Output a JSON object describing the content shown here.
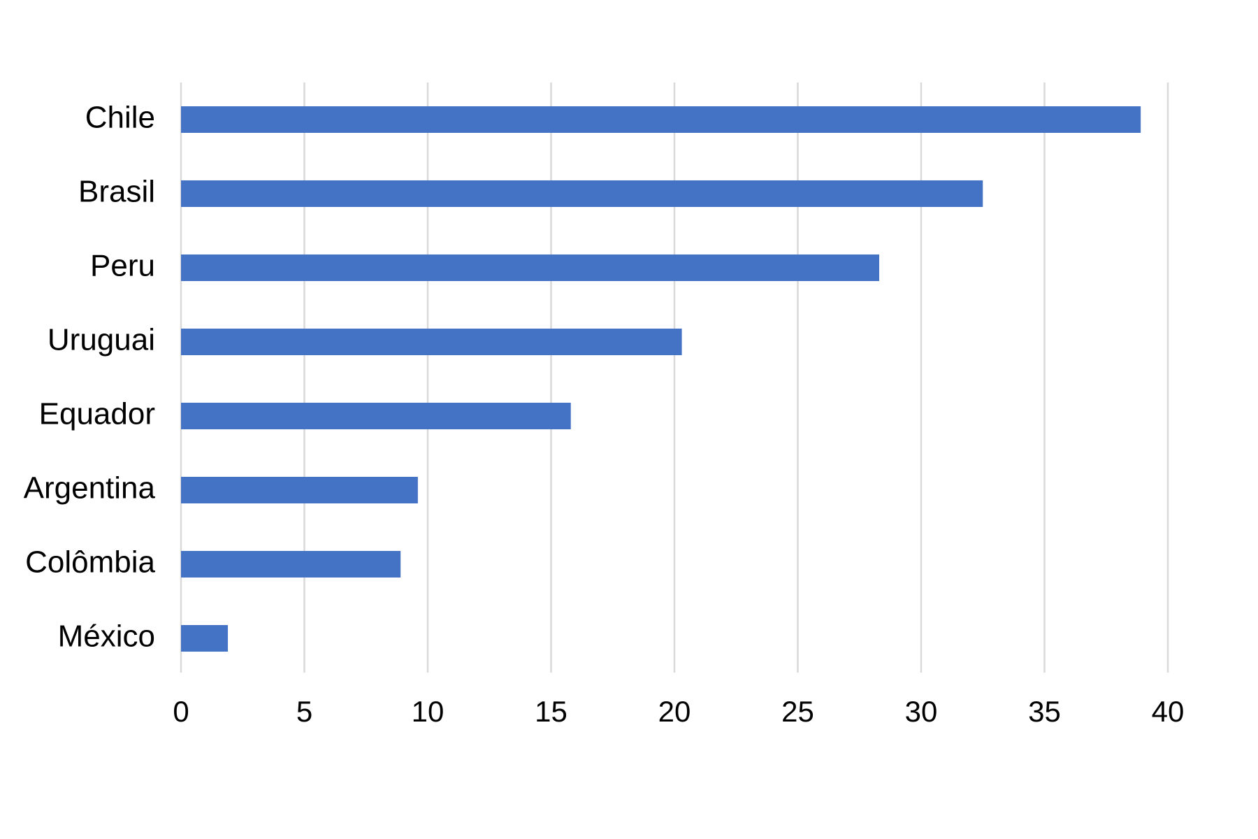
{
  "chart_data": {
    "type": "bar",
    "orientation": "horizontal",
    "categories": [
      "Chile",
      "Brasil",
      "Peru",
      "Uruguai",
      "Equador",
      "Argentina",
      "Colômbia",
      "México"
    ],
    "values": [
      38.9,
      32.5,
      28.3,
      20.3,
      15.8,
      9.6,
      8.9,
      1.9
    ],
    "title": "",
    "xlabel": "",
    "ylabel": "",
    "xlim": [
      0,
      40
    ],
    "xticks": [
      "0",
      "5",
      "10",
      "15",
      "20",
      "25",
      "30",
      "35",
      "40"
    ],
    "grid": "vertical",
    "legend": "none",
    "bar_color": "#4472c4",
    "grid_color": "#d9d9d9"
  }
}
